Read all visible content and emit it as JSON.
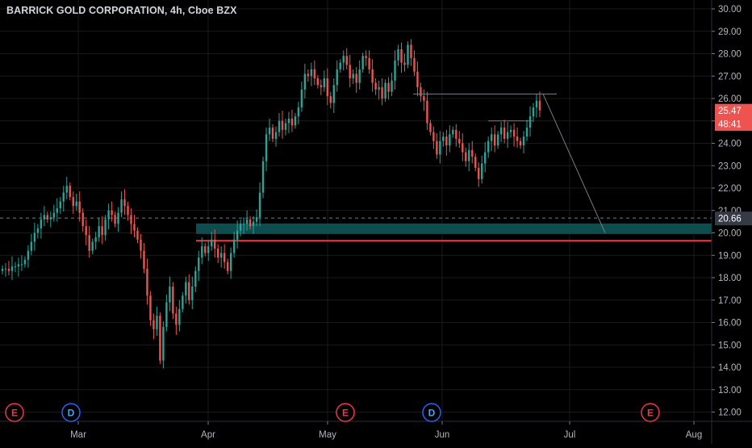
{
  "header": {
    "symbol_title": "BARRICK GOLD CORPORATION, 4h, Cboe BZX"
  },
  "chart_data": {
    "type": "candlestick",
    "title": "BARRICK GOLD CORPORATION, 4h, Cboe BZX",
    "ylim": [
      11.5,
      30.3
    ],
    "y_ticks": [
      "30.00",
      "29.00",
      "28.00",
      "27.00",
      "26.00",
      "25.00",
      "24.00",
      "23.00",
      "22.00",
      "21.00",
      "20.00",
      "19.00",
      "18.00",
      "17.00",
      "16.00",
      "15.00",
      "14.00",
      "13.00",
      "12.00"
    ],
    "x_ticks": [
      "Mar",
      "Apr",
      "May",
      "Jun",
      "Jul",
      "Aug"
    ],
    "price_labels": [
      {
        "text": "25.47",
        "value": 25.47,
        "color": "#ef5350"
      },
      {
        "text": "48:41",
        "value": 24.88,
        "color": "#ef5350"
      },
      {
        "text": "20.66",
        "value": 20.66,
        "color": "#363a45"
      }
    ],
    "dashed_line_value": 20.66,
    "support_zone": {
      "low": 19.95,
      "high": 20.42,
      "color": "#0e4d4f"
    },
    "red_support_line": {
      "value": 19.65,
      "color": "#f23645"
    },
    "resistance_lines": [
      {
        "value": 26.2
      },
      {
        "value": 25.0
      }
    ],
    "projection_line": {
      "from": 26.2,
      "to": 20.0
    },
    "event_markers": [
      {
        "text": "E",
        "kind": "earnings"
      },
      {
        "text": "D",
        "kind": "dividend"
      },
      {
        "text": "E",
        "kind": "earnings"
      },
      {
        "text": "D",
        "kind": "dividend"
      },
      {
        "text": "E",
        "kind": "earnings"
      }
    ],
    "colors": {
      "up": "#26a69a",
      "down": "#ef5350",
      "grid": "#1a1a1a",
      "axis_text": "#b2b5be"
    },
    "series": [
      {
        "close": [
          18.4,
          18.4,
          18.3,
          18.5,
          18.5,
          18.6,
          18.6,
          18.8,
          19.2,
          19.6,
          20.0,
          20.2,
          20.6,
          20.8,
          20.6,
          20.7,
          20.9,
          21.1,
          21.4,
          21.8,
          22.1,
          21.6,
          21.2,
          21.4,
          20.9,
          20.3,
          19.9,
          19.2,
          19.6,
          19.8,
          20.3,
          19.9,
          20.6,
          21.0,
          20.8,
          20.4,
          20.9,
          21.5,
          21.2,
          20.8,
          20.4,
          20.1,
          19.7,
          19.2,
          18.4,
          17.2,
          16.1,
          15.7,
          16.3,
          14.3,
          15.8,
          16.9,
          17.6,
          16.4,
          15.9,
          16.6,
          17.2,
          17.8,
          17.0,
          17.6,
          18.3,
          18.9,
          19.4,
          19.1,
          19.4,
          19.7,
          19.3,
          18.9,
          19.1,
          18.7,
          18.3,
          19.1,
          19.7,
          20.1,
          20.4,
          20.4,
          20.6,
          20.3,
          20.5,
          20.7,
          21.8,
          23.2,
          24.4,
          24.7,
          24.2,
          24.5,
          25.0,
          24.6,
          24.9,
          25.1,
          24.8,
          25.2,
          25.6,
          26.4,
          27.1,
          27.0,
          27.3,
          26.9,
          26.6,
          26.5,
          26.9,
          26.1,
          25.8,
          26.6,
          27.3,
          27.6,
          27.9,
          27.5,
          26.9,
          27.1,
          26.7,
          27.3,
          27.9,
          27.8,
          27.3,
          26.7,
          26.4,
          26.5,
          26.0,
          26.7,
          26.3,
          26.8,
          27.7,
          28.2,
          27.6,
          27.5,
          28.4,
          27.8,
          27.2,
          26.5,
          26.1,
          25.9,
          24.9,
          24.5,
          24.1,
          23.5,
          24.1,
          24.3,
          23.9,
          24.4,
          24.6,
          24.2,
          24.0,
          23.6,
          23.2,
          23.7,
          23.4,
          22.9,
          22.4,
          23.1,
          23.6,
          24.1,
          24.4,
          23.9,
          24.4,
          24.7,
          24.2,
          24.5,
          24.6,
          24.3,
          24.1,
          23.9,
          24.3,
          24.7,
          25.2,
          25.6,
          25.9,
          25.47
        ]
      }
    ]
  }
}
